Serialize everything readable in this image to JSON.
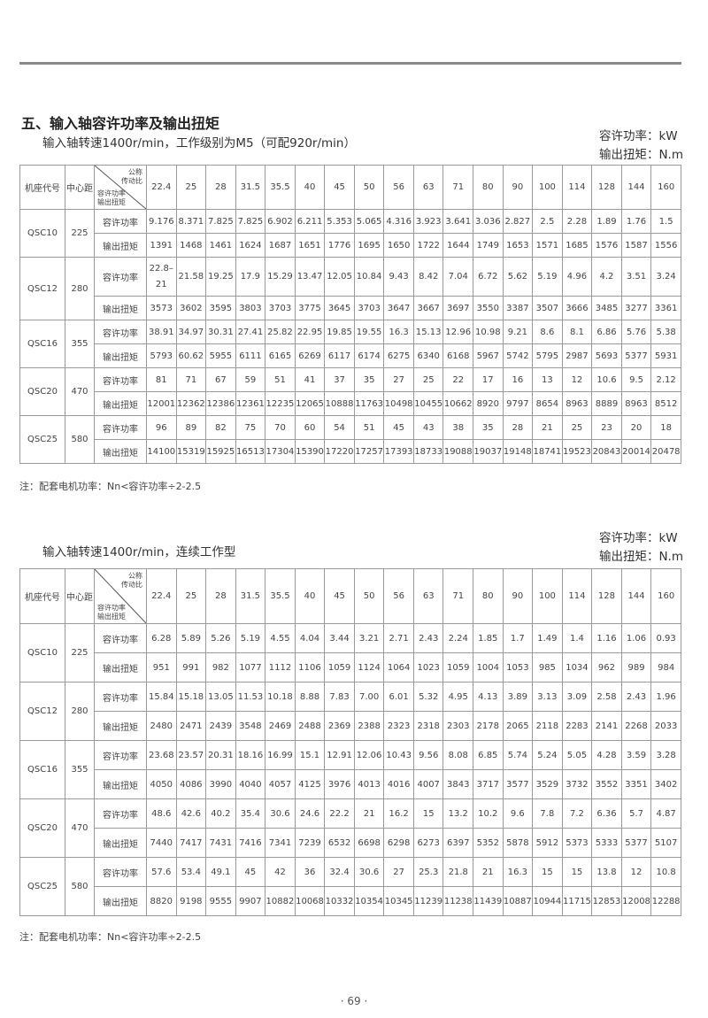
{
  "section_title": "五、输入轴容许功率及输出扭矩",
  "units": {
    "power": "容许功率：kW",
    "torque": "输出扭矩：N.m"
  },
  "header": {
    "frame": "机座代号",
    "center": "中心距",
    "diag_top": "公称\n传动比",
    "diag_bottom": "容许功率\n输出扭矩",
    "power_label": "容许功率",
    "torque_label": "输出扭矩"
  },
  "ratios": [
    "22.4",
    "25",
    "28",
    "31.5",
    "35.5",
    "40",
    "45",
    "50",
    "56",
    "63",
    "71",
    "80",
    "90",
    "100",
    "114",
    "128",
    "144",
    "160"
  ],
  "tables": [
    {
      "subtitle": "输入轴转速1400r/min，工作级别为M5（可配920r/min）",
      "note": "注：配套电机功率：Nn<容许功率÷2-2.5",
      "rows": [
        {
          "frame": "QSC10",
          "center": "225",
          "power": [
            "9.176",
            "8.371",
            "7.825",
            "7.825",
            "6.902",
            "6.211",
            "5.353",
            "5.065",
            "4.316",
            "3.923",
            "3.641",
            "3.036",
            "2.827",
            "2.5",
            "2.28",
            "1.89",
            "1.76",
            "1.5"
          ],
          "torque": [
            "1391",
            "1468",
            "1461",
            "1624",
            "1687",
            "1651",
            "1776",
            "1695",
            "1650",
            "1722",
            "1644",
            "1749",
            "1653",
            "1571",
            "1685",
            "1576",
            "1587",
            "1556"
          ]
        },
        {
          "frame": "QSC12",
          "center": "280",
          "power": [
            "22.8–21",
            "21.58",
            "19.25",
            "17.9",
            "15.29",
            "13.47",
            "12.05",
            "10.84",
            "9.43",
            "8.42",
            "7.04",
            "6.72",
            "5.62",
            "5.19",
            "4.96",
            "4.2",
            "3.51",
            "3.24"
          ],
          "torque": [
            "3573",
            "3602",
            "3595",
            "3803",
            "3703",
            "3775",
            "3645",
            "3703",
            "3647",
            "3667",
            "3697",
            "3550",
            "3387",
            "3507",
            "3666",
            "3485",
            "3277",
            "3361"
          ]
        },
        {
          "frame": "QSC16",
          "center": "355",
          "power": [
            "38.91",
            "34.97",
            "30.31",
            "27.41",
            "25.82",
            "22.95",
            "19.85",
            "19.55",
            "16.3",
            "15.13",
            "12.96",
            "10.98",
            "9.21",
            "8.6",
            "8.1",
            "6.86",
            "5.76",
            "5.38"
          ],
          "torque": [
            "5793",
            "60.62",
            "5955",
            "6111",
            "6165",
            "6269",
            "6117",
            "6174",
            "6275",
            "6340",
            "6168",
            "5967",
            "5742",
            "5795",
            "2987",
            "5693",
            "5377",
            "5931"
          ]
        },
        {
          "frame": "QSC20",
          "center": "470",
          "power": [
            "81",
            "71",
            "67",
            "59",
            "51",
            "41",
            "37",
            "35",
            "27",
            "25",
            "22",
            "17",
            "16",
            "13",
            "12",
            "10.6",
            "9.5",
            "2.12"
          ],
          "torque": [
            "12001",
            "12362",
            "12386",
            "12361",
            "12235",
            "12065",
            "10888",
            "11763",
            "10498",
            "10455",
            "10662",
            "8920",
            "9797",
            "8654",
            "8963",
            "8889",
            "8963",
            "8512"
          ]
        },
        {
          "frame": "QSC25",
          "center": "580",
          "power": [
            "96",
            "89",
            "82",
            "75",
            "70",
            "60",
            "54",
            "51",
            "45",
            "43",
            "38",
            "35",
            "28",
            "21",
            "25",
            "23",
            "20",
            "18"
          ],
          "torque": [
            "14100",
            "15319",
            "15925",
            "16513",
            "17304",
            "15390",
            "17220",
            "17257",
            "17393",
            "18733",
            "19088",
            "19037",
            "19148",
            "18741",
            "19523",
            "20843",
            "20014",
            "20478"
          ]
        }
      ]
    },
    {
      "subtitle": "输入轴转速1400r/min，连续工作型",
      "note": "注：配套电机功率：Nn<容许功率÷2-2.5",
      "rows": [
        {
          "frame": "QSC10",
          "center": "225",
          "power": [
            "6.28",
            "5.89",
            "5.26",
            "5.19",
            "4.55",
            "4.04",
            "3.44",
            "3.21",
            "2.71",
            "2.43",
            "2.24",
            "1.85",
            "1.7",
            "1.49",
            "1.4",
            "1.16",
            "1.06",
            "0.93"
          ],
          "torque": [
            "951",
            "991",
            "982",
            "1077",
            "1112",
            "1106",
            "1059",
            "1124",
            "1064",
            "1023",
            "1059",
            "1004",
            "1053",
            "985",
            "1034",
            "962",
            "989",
            "984"
          ]
        },
        {
          "frame": "QSC12",
          "center": "280",
          "power": [
            "15.84",
            "15.18",
            "13.05",
            "11.53",
            "10.18",
            "8.88",
            "7.83",
            "7.00",
            "6.01",
            "5.32",
            "4.95",
            "4.13",
            "3.89",
            "3.13",
            "3.09",
            "2.58",
            "2.43",
            "1.96"
          ],
          "torque": [
            "2480",
            "2471",
            "2439",
            "3548",
            "2469",
            "2488",
            "2369",
            "2388",
            "2323",
            "2318",
            "2303",
            "2178",
            "2065",
            "2118",
            "2283",
            "2141",
            "2268",
            "2033"
          ]
        },
        {
          "frame": "QSC16",
          "center": "355",
          "power": [
            "23.68",
            "23.57",
            "20.31",
            "18.16",
            "16.99",
            "15.1",
            "12.91",
            "12.06",
            "10.43",
            "9.56",
            "8.08",
            "6.85",
            "5.74",
            "5.24",
            "5.05",
            "4.28",
            "3.59",
            "3.28"
          ],
          "torque": [
            "4050",
            "4086",
            "3990",
            "4040",
            "4057",
            "4125",
            "3976",
            "4013",
            "4016",
            "4007",
            "3843",
            "3717",
            "3577",
            "3529",
            "3732",
            "3552",
            "3351",
            "3402"
          ]
        },
        {
          "frame": "QSC20",
          "center": "470",
          "power": [
            "48.6",
            "42.6",
            "40.2",
            "35.4",
            "30.6",
            "24.6",
            "22.2",
            "21",
            "16.2",
            "15",
            "13.2",
            "10.2",
            "9.6",
            "7.8",
            "7.2",
            "6.36",
            "5.7",
            "4.87"
          ],
          "torque": [
            "7440",
            "7417",
            "7431",
            "7416",
            "7341",
            "7239",
            "6532",
            "6698",
            "6298",
            "6273",
            "6397",
            "5352",
            "5878",
            "5912",
            "5373",
            "5333",
            "5377",
            "5107"
          ]
        },
        {
          "frame": "QSC25",
          "center": "580",
          "power": [
            "57.6",
            "53.4",
            "49.1",
            "45",
            "42",
            "36",
            "32.4",
            "30.6",
            "27",
            "25.3",
            "21.8",
            "21",
            "16.3",
            "15",
            "15",
            "13.8",
            "12",
            "10.8"
          ],
          "torque": [
            "8820",
            "9198",
            "9555",
            "9907",
            "10882",
            "10068",
            "10332",
            "10354",
            "10345",
            "11239",
            "11238",
            "11439",
            "10887",
            "10944",
            "11715",
            "12853",
            "12008",
            "12288"
          ]
        }
      ]
    }
  ],
  "page_number": "· 69 ·"
}
